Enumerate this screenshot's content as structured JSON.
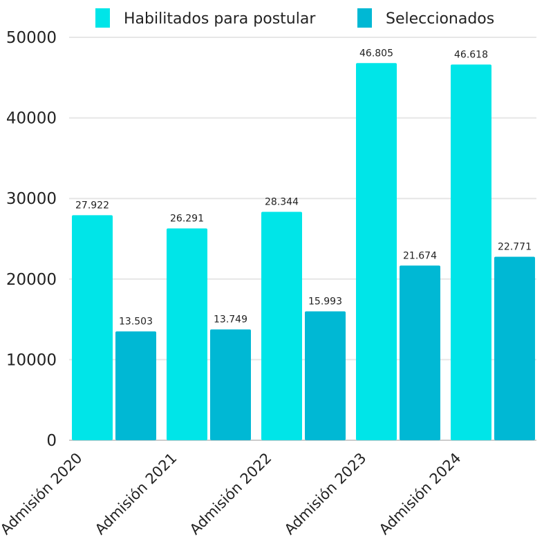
{
  "chart_data": {
    "type": "bar",
    "categories": [
      "Admisión 2020",
      "Admisión 2021",
      "Admisión 2022",
      "Admisión 2023",
      "Admisión 2024"
    ],
    "series": [
      {
        "name": "Habilitados para postular",
        "values": [
          27922,
          26291,
          28344,
          46805,
          46618
        ],
        "labels": [
          "27.922",
          "26.291",
          "28.344",
          "46.805",
          "46.618"
        ],
        "color": "#00E5E8"
      },
      {
        "name": "Seleccionados",
        "values": [
          13503,
          13749,
          15993,
          21674,
          22771
        ],
        "labels": [
          "13.503",
          "13.749",
          "15.993",
          "21.674",
          "22.771"
        ],
        "color": "#00B8D4"
      }
    ],
    "yticks": [
      0,
      10000,
      20000,
      30000,
      40000,
      50000
    ],
    "ylim": [
      0,
      50000
    ],
    "grid": true,
    "legend_position": "top"
  }
}
